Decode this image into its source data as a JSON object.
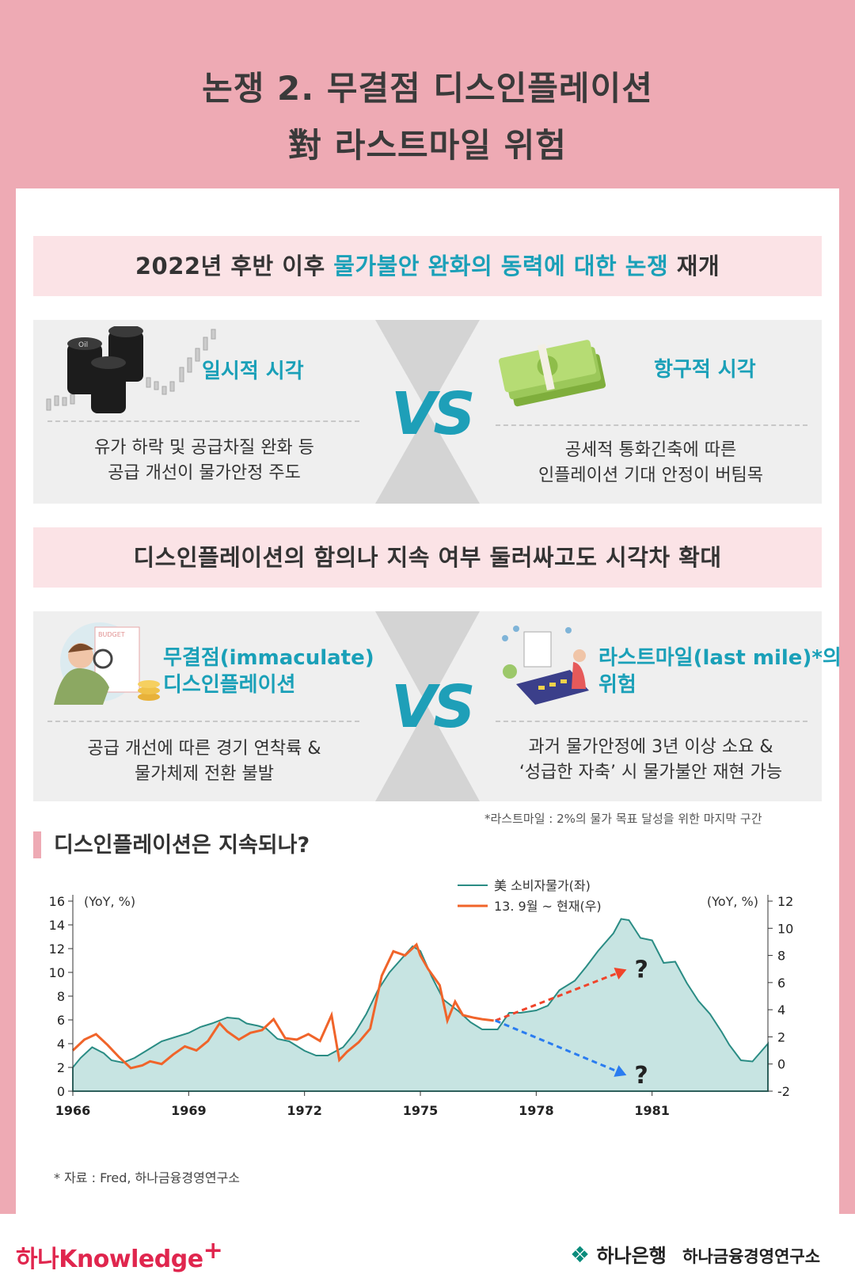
{
  "title": {
    "line1": "논쟁 2. 무결점 디스인플레이션",
    "line2": "對 라스트마일 위험"
  },
  "banner1": {
    "pre": "2022년 후반 이후 ",
    "highlight": "물가불안 완화의 동력에 대한 논쟁",
    "post": " 재개"
  },
  "banner2": {
    "text": "디스인플레이션의 함의나 지속 여부 둘러싸고도 시각차 확대"
  },
  "vs_label": "VS",
  "row1": {
    "left": {
      "title": "일시적 시각",
      "line1": "유가 하락 및 공급차질 완화 등",
      "line2": "공급 개선이 물가안정 주도",
      "icon": "oil-barrels-icon",
      "barrel_label": "Oil"
    },
    "right": {
      "title": "항구적 시각",
      "line1": "공세적 통화긴축에 따른",
      "line2": "인플레이션 기대 안정이 버팀목",
      "icon": "money-stack-icon"
    }
  },
  "row2": {
    "left": {
      "title1": "무결점(immaculate)",
      "title2": "디스인플레이션",
      "line1": "공급 개선에 따른 경기 연착륙 &",
      "line2": "물가체제 전환 불발",
      "icon": "magnifier-person-icon",
      "doc_label": "BUDGET"
    },
    "right": {
      "title1": "라스트마일(last mile)*의",
      "title2": "위험",
      "line1": "과거 물가안정에 3년 이상 소요 &",
      "line2": "‘성급한 자축’ 시 물가불안 재현 가능",
      "icon": "calculator-person-icon"
    },
    "footnote": "*라스트마일 : 2%의 물가 목표 달성을 위한 마지막 구간"
  },
  "section_title": "디스인플레이션은 지속되나?",
  "source": "* 자료 : Fred, 하나금융경영연구소",
  "footer": {
    "left_brand": "하나Knowledge",
    "left_plus": "+",
    "right_brand": "하나은행",
    "right_sub": "하나금융경영연구소"
  },
  "colors": {
    "pink": "#eeaab4",
    "teal": "#1aa0b8",
    "area_fill": "#c7e4e2",
    "line_teal": "#2a8c84",
    "line_orange": "#f0642a",
    "arrow_red": "#f0442a",
    "arrow_blue": "#2a7cf0"
  },
  "chart_data": {
    "type": "line",
    "ylabel_left": "(YoY, %)",
    "ylabel_right": "(YoY, %)",
    "ylim_left": [
      0,
      16
    ],
    "ylim_right": [
      -2,
      12
    ],
    "yticks_left": [
      0,
      2,
      4,
      6,
      8,
      10,
      12,
      14,
      16
    ],
    "yticks_right": [
      -2,
      0,
      2,
      4,
      6,
      8,
      10,
      12
    ],
    "xlim": [
      1966,
      1984
    ],
    "xticks": [
      "1966",
      "1969",
      "1972",
      "1975",
      "1978",
      "1981"
    ],
    "legend_position": "top-center",
    "series": [
      {
        "name": "美 소비자물가(좌)",
        "axis": "left",
        "style": "area",
        "x": [
          1966.0,
          1966.2,
          1966.5,
          1966.8,
          1967.0,
          1967.3,
          1967.6,
          1968.0,
          1968.3,
          1968.6,
          1969.0,
          1969.3,
          1969.6,
          1970.0,
          1970.3,
          1970.5,
          1970.8,
          1971.0,
          1971.3,
          1971.6,
          1972.0,
          1972.3,
          1972.6,
          1973.0,
          1973.3,
          1973.6,
          1973.9,
          1974.2,
          1974.5,
          1974.8,
          1975.0,
          1975.3,
          1975.6,
          1976.0,
          1976.3,
          1976.6,
          1977.0,
          1977.3,
          1977.6,
          1978.0,
          1978.3,
          1978.6,
          1979.0,
          1979.3,
          1979.6,
          1980.0,
          1980.2,
          1980.4,
          1980.7,
          1981.0,
          1981.3,
          1981.6,
          1981.9,
          1982.2,
          1982.5,
          1982.8,
          1983.0,
          1983.3,
          1983.6,
          1984.0
        ],
        "values": [
          2.0,
          2.8,
          3.7,
          3.2,
          2.6,
          2.4,
          2.8,
          3.6,
          4.2,
          4.5,
          4.9,
          5.4,
          5.7,
          6.2,
          6.1,
          5.7,
          5.5,
          5.3,
          4.4,
          4.2,
          3.4,
          3.0,
          3.0,
          3.7,
          4.9,
          6.5,
          8.5,
          10.0,
          11.1,
          12.2,
          11.8,
          9.6,
          7.7,
          6.7,
          5.8,
          5.2,
          5.2,
          6.6,
          6.6,
          6.8,
          7.2,
          8.5,
          9.3,
          10.5,
          11.8,
          13.3,
          14.5,
          14.4,
          12.9,
          12.7,
          10.8,
          10.9,
          9.1,
          7.6,
          6.5,
          5.0,
          3.9,
          2.6,
          2.5,
          4.0
        ]
      },
      {
        "name": "13. 9월 ~ 현재(우)",
        "axis": "right",
        "style": "line",
        "x": [
          1966.0,
          1966.3,
          1966.6,
          1966.9,
          1967.2,
          1967.5,
          1967.8,
          1968.0,
          1968.3,
          1968.6,
          1968.9,
          1969.2,
          1969.5,
          1969.8,
          1970.0,
          1970.3,
          1970.6,
          1970.9,
          1971.2,
          1971.5,
          1971.8,
          1972.1,
          1972.4,
          1972.7,
          1972.9,
          1973.1,
          1973.4,
          1973.7,
          1974.0,
          1974.3,
          1974.6,
          1974.9,
          1975.0,
          1975.2,
          1975.5,
          1975.7,
          1975.9,
          1976.1,
          1976.4,
          1976.6,
          1976.9
        ],
        "values": [
          1.0,
          1.8,
          2.2,
          1.4,
          0.5,
          -0.3,
          -0.1,
          0.2,
          0.0,
          0.7,
          1.3,
          1.0,
          1.7,
          3.0,
          2.4,
          1.8,
          2.3,
          2.5,
          3.3,
          1.9,
          1.8,
          2.2,
          1.7,
          3.6,
          0.3,
          0.9,
          1.6,
          2.6,
          6.5,
          8.3,
          8.0,
          8.8,
          8.0,
          7.0,
          5.8,
          3.2,
          4.6,
          3.6,
          3.4,
          3.3,
          3.2
        ]
      }
    ],
    "scenario_arrows": [
      {
        "direction": "up",
        "color": "red",
        "label": "?"
      },
      {
        "direction": "down",
        "color": "blue",
        "label": "?"
      }
    ]
  }
}
